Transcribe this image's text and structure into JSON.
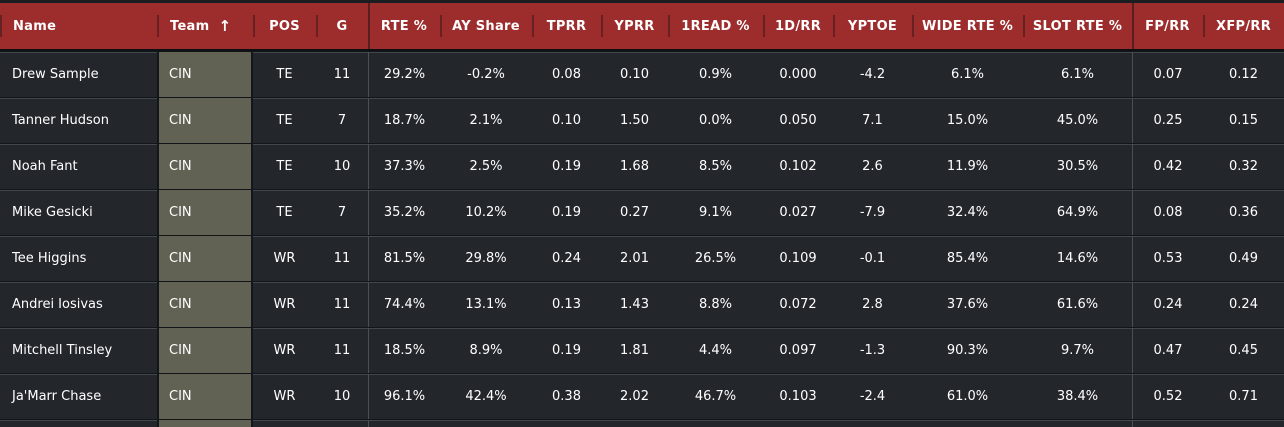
{
  "table": {
    "sort_icon": "↑",
    "columns": [
      {
        "key": "name",
        "label": "Name"
      },
      {
        "key": "team",
        "label": "Team",
        "sort": "ascending"
      },
      {
        "key": "pos",
        "label": "POS"
      },
      {
        "key": "g",
        "label": "G"
      },
      {
        "key": "rte-pct",
        "label": "RTE %"
      },
      {
        "key": "ay-share",
        "label": "AY Share"
      },
      {
        "key": "tprr",
        "label": "TPRR"
      },
      {
        "key": "yprr",
        "label": "YPRR"
      },
      {
        "key": "1read-pct",
        "label": "1READ %"
      },
      {
        "key": "1d-rr",
        "label": "1D/RR"
      },
      {
        "key": "yptoe",
        "label": "YPTOE"
      },
      {
        "key": "wide-rte-pct",
        "label": "WIDE RTE %"
      },
      {
        "key": "slot-rte-pct",
        "label": "SLOT RTE %"
      },
      {
        "key": "fp-rr",
        "label": "FP/RR"
      },
      {
        "key": "xfp-rr",
        "label": "XFP/RR"
      }
    ],
    "rows": [
      {
        "cells": [
          "Drew Sample",
          "CIN",
          "TE",
          "11",
          "29.2%",
          "-0.2%",
          "0.08",
          "0.10",
          "0.9%",
          "0.000",
          "-4.2",
          "6.1%",
          "6.1%",
          "0.07",
          "0.12"
        ]
      },
      {
        "cells": [
          "Tanner Hudson",
          "CIN",
          "TE",
          "7",
          "18.7%",
          "2.1%",
          "0.10",
          "1.50",
          "0.0%",
          "0.050",
          "7.1",
          "15.0%",
          "45.0%",
          "0.25",
          "0.15"
        ]
      },
      {
        "cells": [
          "Noah Fant",
          "CIN",
          "TE",
          "10",
          "37.3%",
          "2.5%",
          "0.19",
          "1.68",
          "8.5%",
          "0.102",
          "2.6",
          "11.9%",
          "30.5%",
          "0.42",
          "0.32"
        ]
      },
      {
        "cells": [
          "Mike Gesicki",
          "CIN",
          "TE",
          "7",
          "35.2%",
          "10.2%",
          "0.19",
          "0.27",
          "9.1%",
          "0.027",
          "-7.9",
          "32.4%",
          "64.9%",
          "0.08",
          "0.36"
        ]
      },
      {
        "cells": [
          "Tee Higgins",
          "CIN",
          "WR",
          "11",
          "81.5%",
          "29.8%",
          "0.24",
          "2.01",
          "26.5%",
          "0.109",
          "-0.1",
          "85.4%",
          "14.6%",
          "0.53",
          "0.49"
        ]
      },
      {
        "cells": [
          "Andrei Iosivas",
          "CIN",
          "WR",
          "11",
          "74.4%",
          "13.1%",
          "0.13",
          "1.43",
          "8.8%",
          "0.072",
          "2.8",
          "37.6%",
          "61.6%",
          "0.24",
          "0.24"
        ]
      },
      {
        "cells": [
          "Mitchell Tinsley",
          "CIN",
          "WR",
          "11",
          "18.5%",
          "8.9%",
          "0.19",
          "1.81",
          "4.4%",
          "0.097",
          "-1.3",
          "90.3%",
          "9.7%",
          "0.47",
          "0.45"
        ]
      },
      {
        "cells": [
          "Ja'Marr Chase",
          "CIN",
          "WR",
          "10",
          "96.1%",
          "42.4%",
          "0.38",
          "2.02",
          "46.7%",
          "0.103",
          "-2.4",
          "61.0%",
          "38.4%",
          "0.52",
          "0.71"
        ]
      }
    ]
  },
  "colors": {
    "header_bg": "#9d2c2d",
    "row_bg": "#23272c",
    "team_cell_bg": "#626254",
    "text": "#ffffff"
  }
}
